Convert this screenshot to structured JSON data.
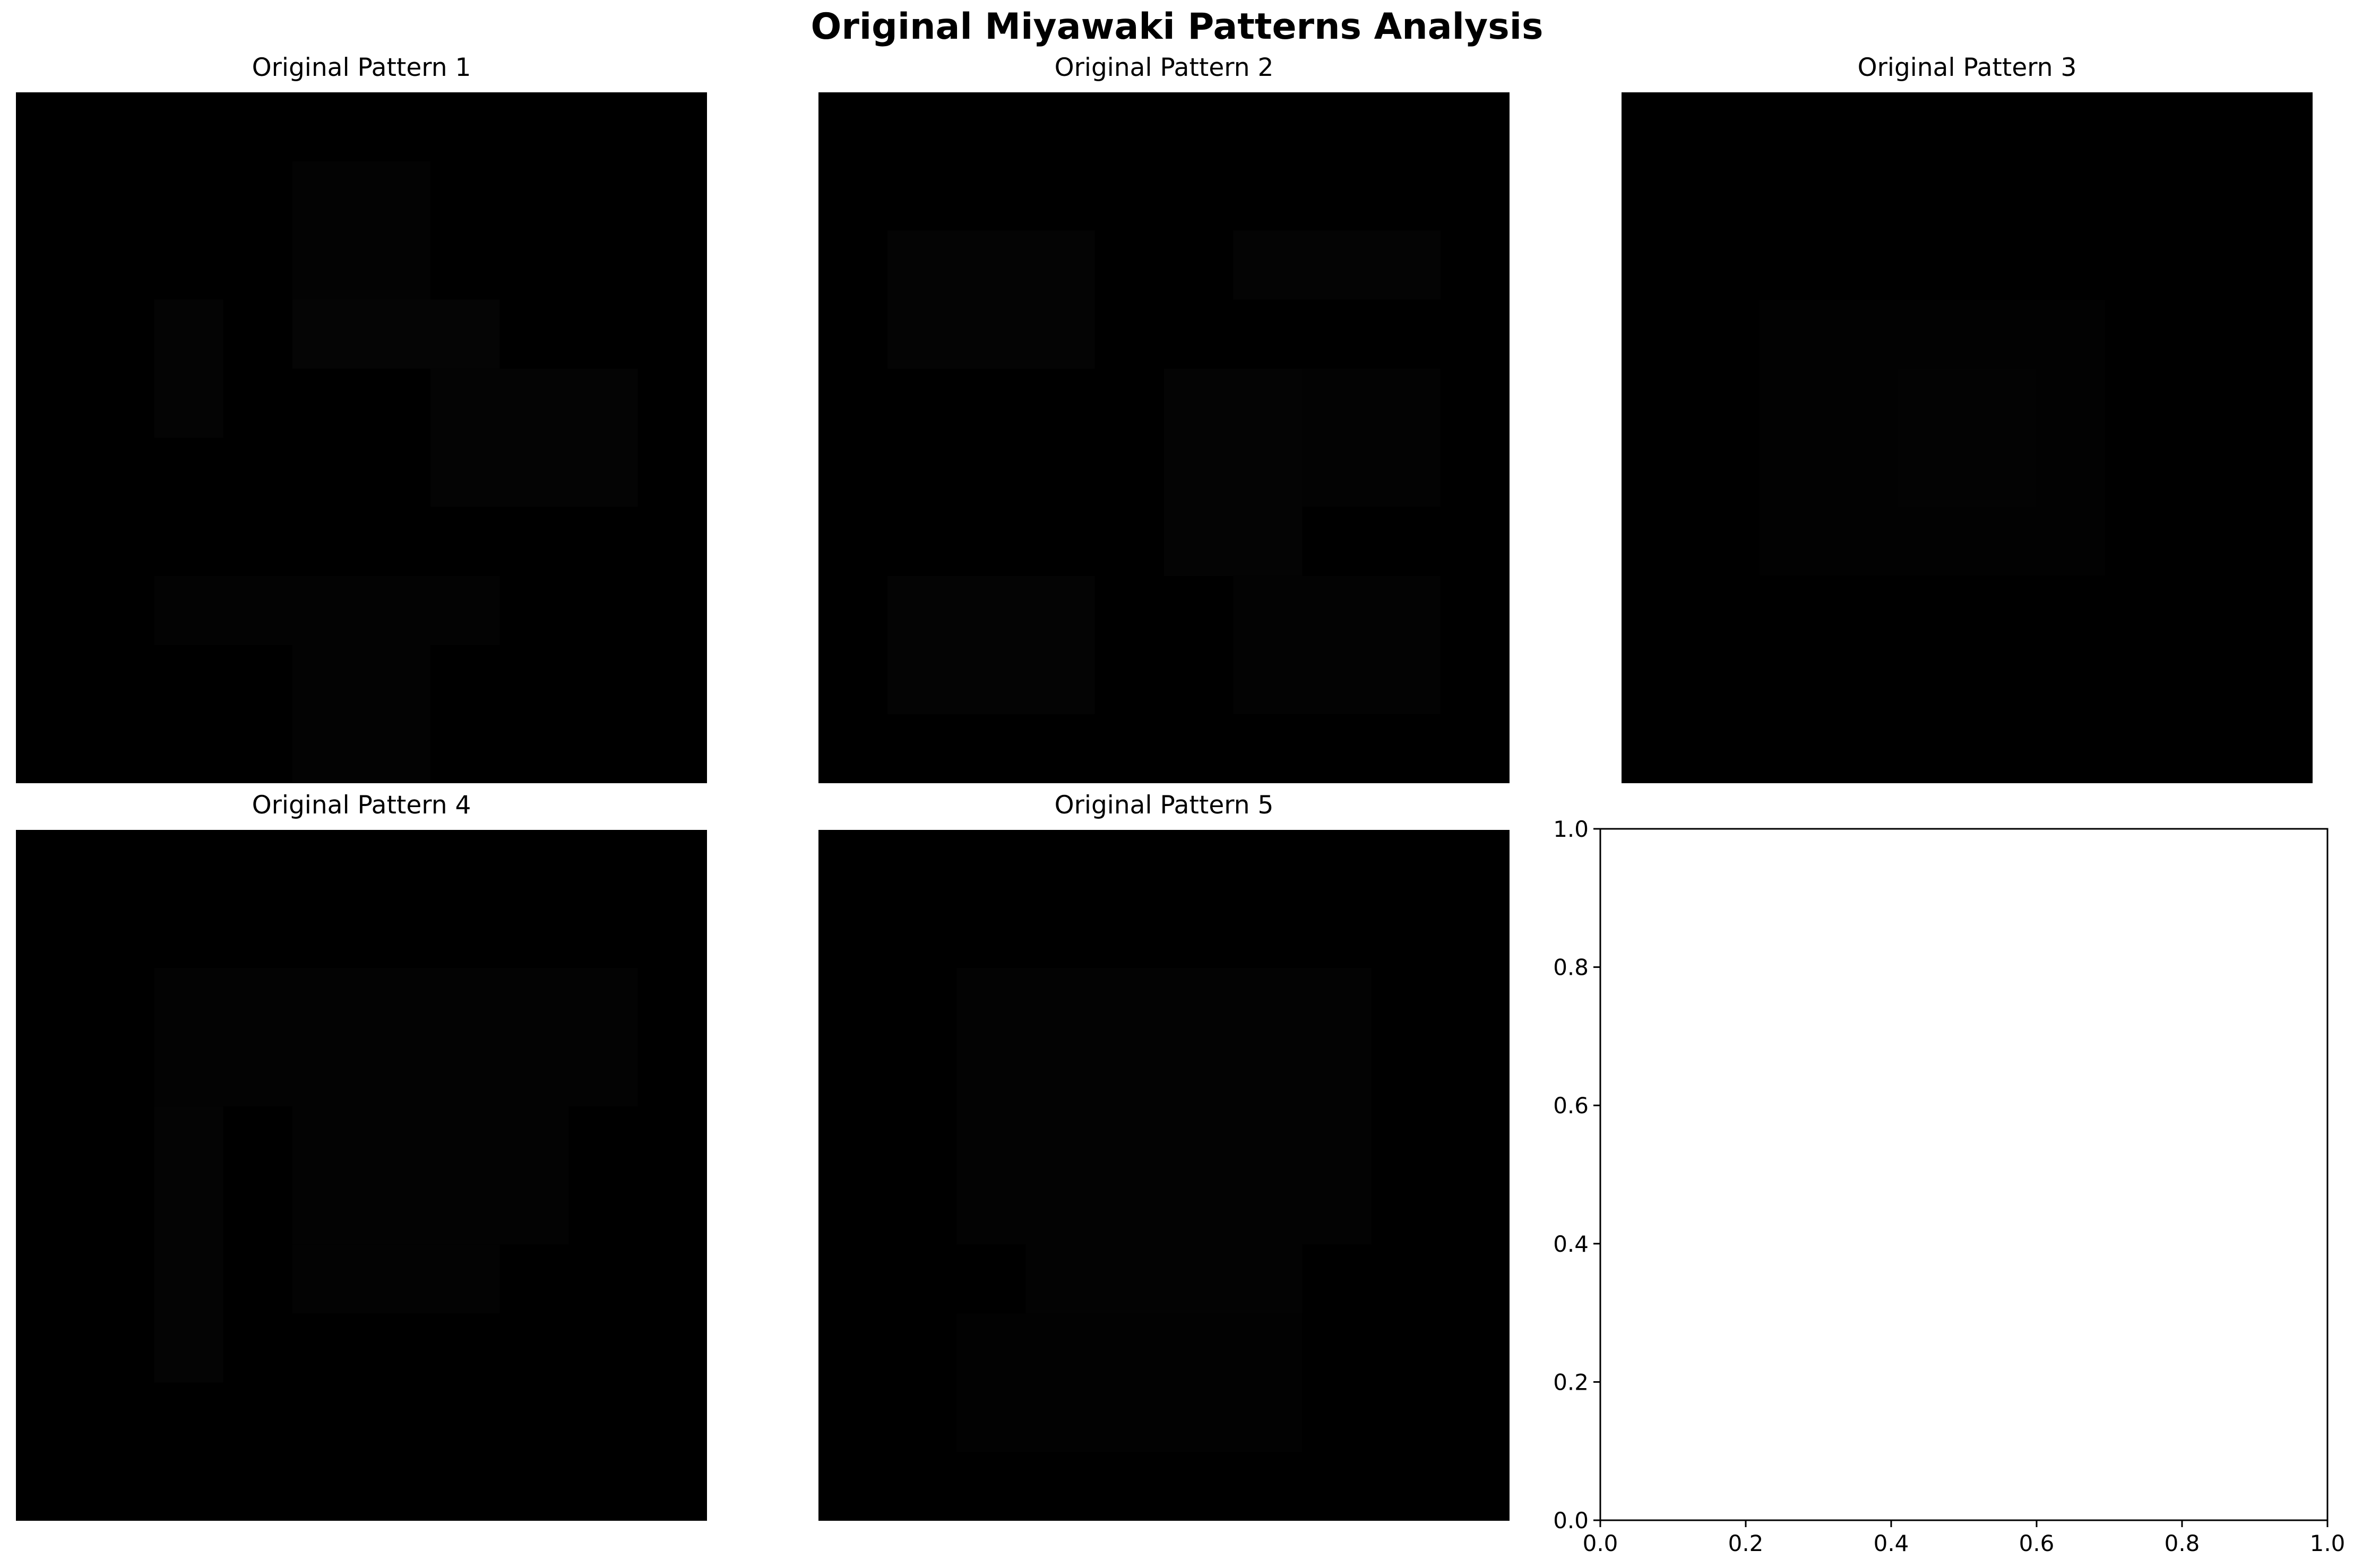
{
  "figure": {
    "title": "Original Miyawaki Patterns Analysis"
  },
  "chart_data": [
    {
      "type": "heatmap",
      "title": "Original Pattern 1",
      "grid": 10,
      "background": "#000000",
      "blocks": [
        {
          "row": 1,
          "col": 4,
          "rows": 2,
          "cols": 2,
          "value": 0.012
        },
        {
          "row": 3,
          "col": 2,
          "rows": 2,
          "cols": 1,
          "value": 0.015
        },
        {
          "row": 3,
          "col": 4,
          "rows": 1,
          "cols": 3,
          "value": 0.018
        },
        {
          "row": 4,
          "col": 6,
          "rows": 2,
          "cols": 3,
          "value": 0.016
        },
        {
          "row": 7,
          "col": 2,
          "rows": 1,
          "cols": 5,
          "value": 0.013
        },
        {
          "row": 8,
          "col": 4,
          "rows": 2,
          "cols": 2,
          "value": 0.01
        }
      ]
    },
    {
      "type": "heatmap",
      "title": "Original Pattern 2",
      "grid": 10,
      "background": "#000000",
      "blocks": [
        {
          "row": 2,
          "col": 1,
          "rows": 2,
          "cols": 3,
          "value": 0.014
        },
        {
          "row": 2,
          "col": 6,
          "rows": 1,
          "cols": 3,
          "value": 0.015
        },
        {
          "row": 4,
          "col": 5,
          "rows": 3,
          "cols": 2,
          "value": 0.016
        },
        {
          "row": 4,
          "col": 7,
          "rows": 2,
          "cols": 2,
          "value": 0.012
        },
        {
          "row": 7,
          "col": 1,
          "rows": 2,
          "cols": 3,
          "value": 0.017
        },
        {
          "row": 7,
          "col": 6,
          "rows": 2,
          "cols": 3,
          "value": 0.011
        }
      ]
    },
    {
      "type": "heatmap",
      "title": "Original Pattern 3",
      "grid": 10,
      "background": "#000000",
      "blocks": [
        {
          "row": 3,
          "col": 2,
          "rows": 4,
          "cols": 5,
          "value": 0.008
        },
        {
          "row": 4,
          "col": 4,
          "rows": 2,
          "cols": 2,
          "value": 0.012
        }
      ]
    },
    {
      "type": "heatmap",
      "title": "Original Pattern 4",
      "grid": 10,
      "background": "#000000",
      "blocks": [
        {
          "row": 2,
          "col": 2,
          "rows": 2,
          "cols": 7,
          "value": 0.012
        },
        {
          "row": 4,
          "col": 2,
          "rows": 4,
          "cols": 1,
          "value": 0.016
        },
        {
          "row": 4,
          "col": 4,
          "rows": 2,
          "cols": 4,
          "value": 0.01
        },
        {
          "row": 6,
          "col": 4,
          "rows": 1,
          "cols": 3,
          "value": 0.013
        }
      ]
    },
    {
      "type": "heatmap",
      "title": "Original Pattern 5",
      "grid": 10,
      "background": "#000000",
      "blocks": [
        {
          "row": 2,
          "col": 2,
          "rows": 4,
          "cols": 6,
          "value": 0.01
        },
        {
          "row": 4,
          "col": 3,
          "rows": 4,
          "cols": 4,
          "value": 0.013
        },
        {
          "row": 7,
          "col": 2,
          "rows": 2,
          "cols": 5,
          "value": 0.009
        }
      ]
    },
    {
      "type": "scatter",
      "title": "",
      "x": [],
      "y": [],
      "xlim": [
        0.0,
        1.0
      ],
      "ylim": [
        0.0,
        1.0
      ],
      "xticks": [
        "0.0",
        "0.2",
        "0.4",
        "0.6",
        "0.8",
        "1.0"
      ],
      "yticks": [
        "0.0",
        "0.2",
        "0.4",
        "0.6",
        "0.8",
        "1.0"
      ],
      "grid": false
    }
  ]
}
